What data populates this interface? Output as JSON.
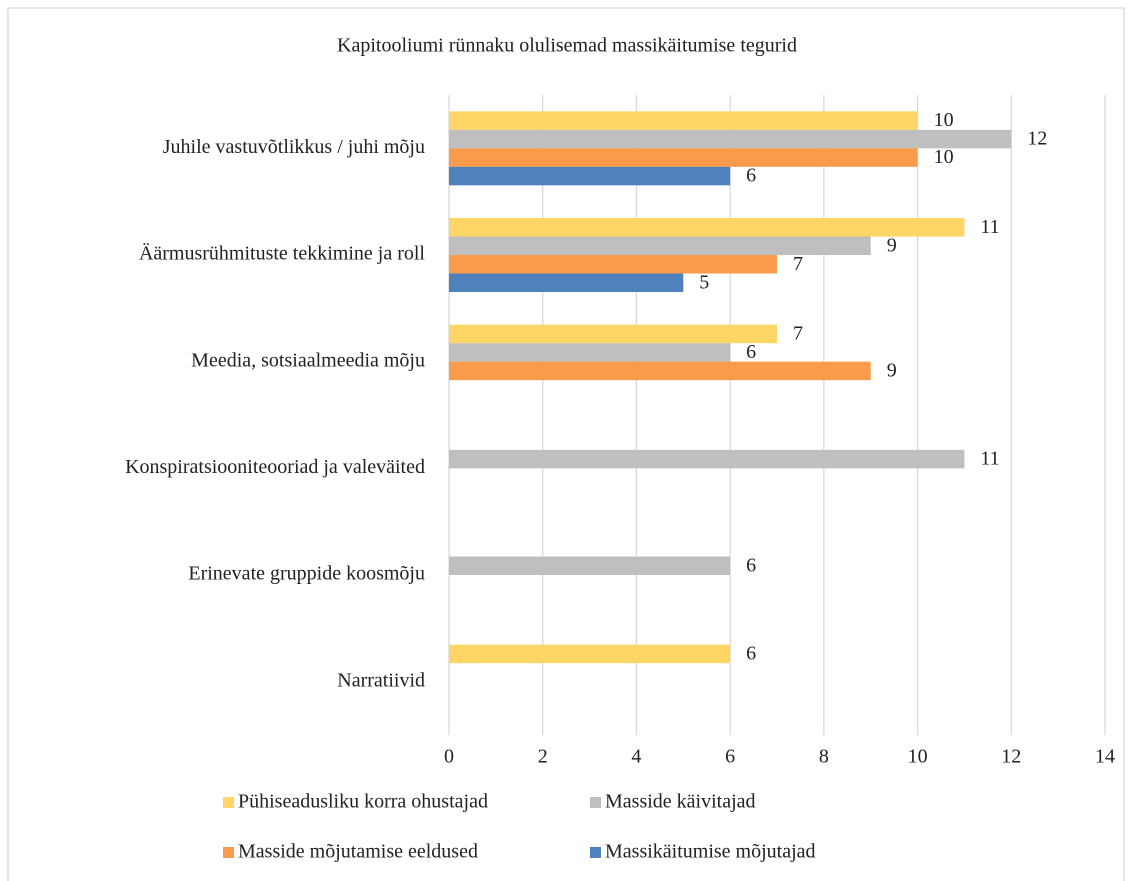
{
  "chart_data": {
    "type": "bar",
    "orientation": "horizontal",
    "title": "Kapitooliumi rünnaku olulisemad massikäitumise tegurid",
    "categories": [
      "Juhile vastuvõtlikkus / juhi mõju",
      "Äärmusrühmituste tekkimine ja roll",
      "Meedia, sotsiaalmeedia mõju",
      "Konspiratsiooniteooriad ja valeväited",
      "Erinevate gruppide koosmõju",
      "Narratiivid"
    ],
    "series": [
      {
        "name": "Pühiseadusliku korra ohustajad",
        "color": "#ffd666",
        "values": [
          10,
          11,
          7,
          null,
          null,
          6
        ]
      },
      {
        "name": "Masside käivitajad",
        "color": "#bfbfbf",
        "values": [
          12,
          9,
          6,
          11,
          6,
          null
        ]
      },
      {
        "name": "Masside mõjutamise eeldused",
        "color": "#f99b4a",
        "values": [
          10,
          7,
          9,
          null,
          null,
          null
        ]
      },
      {
        "name": "Massikäitumise mõjutajad",
        "color": "#4f81bd",
        "values": [
          6,
          5,
          null,
          null,
          null,
          null
        ]
      }
    ],
    "xlim": [
      0,
      14
    ],
    "xticks": [
      0,
      2,
      4,
      6,
      8,
      10,
      12,
      14
    ],
    "grid": true,
    "legend": "bottom"
  }
}
